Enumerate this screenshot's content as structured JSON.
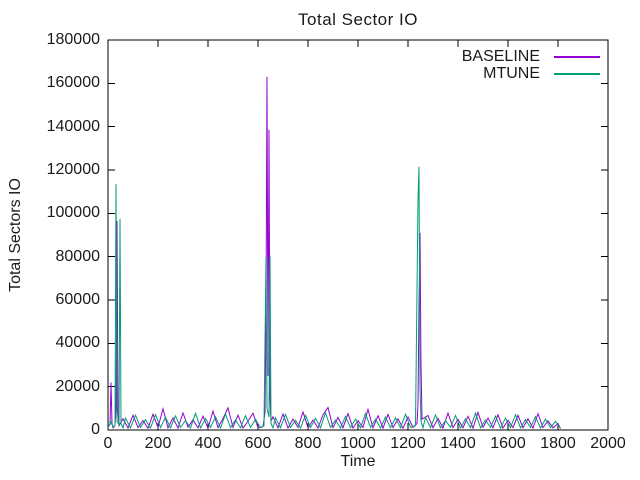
{
  "chart_data": {
    "type": "line",
    "title": "Total Sector IO",
    "xlabel": "Time",
    "ylabel": "Total Sectors IO",
    "xlim": [
      0,
      2000
    ],
    "ylim": [
      0,
      180000
    ],
    "xticks": [
      0,
      200,
      400,
      600,
      800,
      1000,
      1200,
      1400,
      1600,
      1800,
      2000
    ],
    "yticks": [
      0,
      20000,
      40000,
      60000,
      80000,
      100000,
      120000,
      140000,
      160000,
      180000
    ],
    "grid": false,
    "legend_position": "top-right-inside",
    "series": [
      {
        "name": "BASELINE",
        "color": "#9400d3",
        "points": [
          [
            0,
            1500
          ],
          [
            8,
            2500
          ],
          [
            12,
            22000
          ],
          [
            16,
            3000
          ],
          [
            20,
            1000
          ],
          [
            28,
            2000
          ],
          [
            32,
            10000
          ],
          [
            36,
            96500
          ],
          [
            40,
            8000
          ],
          [
            44,
            2000
          ],
          [
            60,
            5200
          ],
          [
            80,
            900
          ],
          [
            100,
            6800
          ],
          [
            120,
            1100
          ],
          [
            140,
            4400
          ],
          [
            160,
            800
          ],
          [
            180,
            7300
          ],
          [
            200,
            1200
          ],
          [
            220,
            9800
          ],
          [
            240,
            1000
          ],
          [
            260,
            5600
          ],
          [
            280,
            900
          ],
          [
            300,
            7900
          ],
          [
            320,
            1300
          ],
          [
            340,
            4700
          ],
          [
            360,
            1000
          ],
          [
            380,
            6400
          ],
          [
            400,
            800
          ],
          [
            420,
            8700
          ],
          [
            440,
            1100
          ],
          [
            460,
            5300
          ],
          [
            480,
            10200
          ],
          [
            500,
            1200
          ],
          [
            520,
            6900
          ],
          [
            540,
            900
          ],
          [
            560,
            4100
          ],
          [
            580,
            7700
          ],
          [
            600,
            1100
          ],
          [
            620,
            1500
          ],
          [
            628,
            8000
          ],
          [
            632,
            55000
          ],
          [
            636,
            163000
          ],
          [
            640,
            25000
          ],
          [
            644,
            138500
          ],
          [
            648,
            15000
          ],
          [
            652,
            4000
          ],
          [
            660,
            6100
          ],
          [
            680,
            1000
          ],
          [
            700,
            7400
          ],
          [
            720,
            900
          ],
          [
            740,
            5000
          ],
          [
            760,
            1200
          ],
          [
            780,
            8300
          ],
          [
            800,
            1000
          ],
          [
            820,
            4600
          ],
          [
            840,
            900
          ],
          [
            860,
            7000
          ],
          [
            880,
            10400
          ],
          [
            900,
            1100
          ],
          [
            920,
            5800
          ],
          [
            940,
            1000
          ],
          [
            960,
            7600
          ],
          [
            980,
            900
          ],
          [
            1000,
            4300
          ],
          [
            1020,
            1200
          ],
          [
            1040,
            9500
          ],
          [
            1060,
            1000
          ],
          [
            1080,
            6600
          ],
          [
            1100,
            900
          ],
          [
            1120,
            7200
          ],
          [
            1140,
            1100
          ],
          [
            1160,
            5100
          ],
          [
            1180,
            800
          ],
          [
            1200,
            6000
          ],
          [
            1220,
            1200
          ],
          [
            1236,
            3000
          ],
          [
            1240,
            12000
          ],
          [
            1244,
            58000
          ],
          [
            1248,
            91000
          ],
          [
            1252,
            30000
          ],
          [
            1256,
            5000
          ],
          [
            1280,
            6700
          ],
          [
            1300,
            1000
          ],
          [
            1320,
            5400
          ],
          [
            1340,
            900
          ],
          [
            1360,
            7800
          ],
          [
            1380,
            1100
          ],
          [
            1400,
            4900
          ],
          [
            1420,
            1000
          ],
          [
            1440,
            6300
          ],
          [
            1460,
            900
          ],
          [
            1480,
            8100
          ],
          [
            1500,
            1200
          ],
          [
            1520,
            5500
          ],
          [
            1540,
            1000
          ],
          [
            1560,
            7000
          ],
          [
            1580,
            900
          ],
          [
            1600,
            4500
          ],
          [
            1620,
            1100
          ],
          [
            1640,
            6800
          ],
          [
            1660,
            1000
          ],
          [
            1680,
            5200
          ],
          [
            1700,
            900
          ],
          [
            1720,
            7500
          ],
          [
            1740,
            1100
          ],
          [
            1760,
            4200
          ],
          [
            1780,
            1000
          ],
          [
            1800,
            3000
          ],
          [
            1810,
            600
          ]
        ]
      },
      {
        "name": "MTUNE",
        "color": "#009e73",
        "points": [
          [
            0,
            800
          ],
          [
            10,
            4000
          ],
          [
            20,
            1500
          ],
          [
            28,
            2000
          ],
          [
            32,
            113500
          ],
          [
            36,
            4000
          ],
          [
            44,
            2500
          ],
          [
            48,
            97500
          ],
          [
            52,
            3000
          ],
          [
            60,
            1000
          ],
          [
            70,
            5500
          ],
          [
            90,
            1000
          ],
          [
            110,
            6900
          ],
          [
            130,
            1200
          ],
          [
            150,
            4800
          ],
          [
            170,
            900
          ],
          [
            190,
            7100
          ],
          [
            210,
            1100
          ],
          [
            230,
            5900
          ],
          [
            250,
            1000
          ],
          [
            270,
            6500
          ],
          [
            290,
            1200
          ],
          [
            310,
            4400
          ],
          [
            330,
            900
          ],
          [
            350,
            7700
          ],
          [
            370,
            1000
          ],
          [
            390,
            5300
          ],
          [
            410,
            1200
          ],
          [
            430,
            6100
          ],
          [
            450,
            900
          ],
          [
            470,
            7400
          ],
          [
            490,
            1100
          ],
          [
            510,
            4700
          ],
          [
            530,
            1000
          ],
          [
            550,
            6600
          ],
          [
            570,
            1200
          ],
          [
            590,
            5000
          ],
          [
            610,
            1000
          ],
          [
            624,
            2000
          ],
          [
            632,
            79500
          ],
          [
            636,
            10000
          ],
          [
            644,
            6000
          ],
          [
            648,
            80500
          ],
          [
            652,
            3000
          ],
          [
            660,
            1000
          ],
          [
            670,
            5700
          ],
          [
            690,
            1000
          ],
          [
            710,
            7200
          ],
          [
            730,
            1200
          ],
          [
            750,
            4500
          ],
          [
            770,
            900
          ],
          [
            790,
            6800
          ],
          [
            810,
            1100
          ],
          [
            830,
            5400
          ],
          [
            850,
            1000
          ],
          [
            870,
            7900
          ],
          [
            890,
            1200
          ],
          [
            910,
            4600
          ],
          [
            930,
            900
          ],
          [
            950,
            6300
          ],
          [
            970,
            1100
          ],
          [
            990,
            5100
          ],
          [
            1010,
            1000
          ],
          [
            1030,
            7600
          ],
          [
            1050,
            1200
          ],
          [
            1070,
            4900
          ],
          [
            1090,
            900
          ],
          [
            1110,
            6000
          ],
          [
            1130,
            1100
          ],
          [
            1150,
            5600
          ],
          [
            1170,
            1000
          ],
          [
            1190,
            7300
          ],
          [
            1210,
            1200
          ],
          [
            1230,
            2000
          ],
          [
            1240,
            106500
          ],
          [
            1244,
            121500
          ],
          [
            1248,
            20000
          ],
          [
            1252,
            4000
          ],
          [
            1260,
            1000
          ],
          [
            1270,
            5800
          ],
          [
            1290,
            1100
          ],
          [
            1310,
            7000
          ],
          [
            1330,
            1000
          ],
          [
            1350,
            4400
          ],
          [
            1370,
            1200
          ],
          [
            1390,
            6700
          ],
          [
            1410,
            900
          ],
          [
            1430,
            5200
          ],
          [
            1450,
            1100
          ],
          [
            1470,
            7800
          ],
          [
            1490,
            1000
          ],
          [
            1510,
            4600
          ],
          [
            1530,
            1200
          ],
          [
            1550,
            6400
          ],
          [
            1570,
            900
          ],
          [
            1590,
            5500
          ],
          [
            1610,
            1100
          ],
          [
            1630,
            7100
          ],
          [
            1650,
            1000
          ],
          [
            1670,
            4800
          ],
          [
            1690,
            1200
          ],
          [
            1710,
            6200
          ],
          [
            1730,
            900
          ],
          [
            1750,
            5000
          ],
          [
            1770,
            1100
          ],
          [
            1790,
            4000
          ],
          [
            1810,
            700
          ]
        ]
      }
    ]
  },
  "colors": {
    "background": "#ffffff",
    "axis": "#000000",
    "text": "#1a1a1a"
  }
}
